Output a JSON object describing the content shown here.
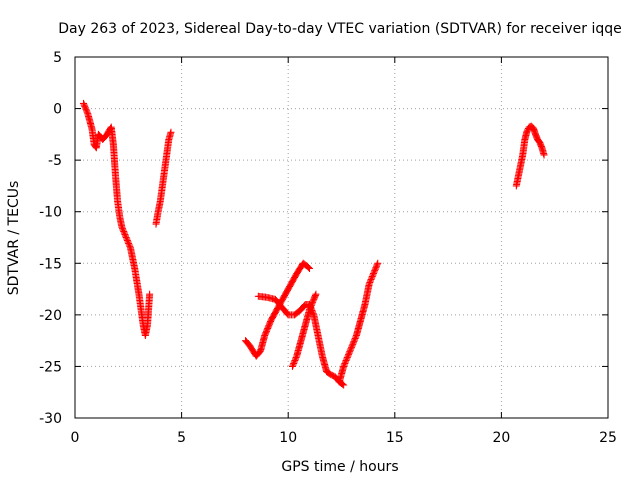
{
  "chart_data": {
    "type": "scatter",
    "title": "Day 263 of 2023, Sidereal Day-to-day VTEC variation (SDTVAR) for receiver iqqe",
    "xlabel": "GPS time / hours",
    "ylabel": "SDTVAR / TECUs",
    "xlim": [
      0,
      25
    ],
    "ylim": [
      -30,
      5
    ],
    "xticks": [
      0,
      5,
      10,
      15,
      20,
      25
    ],
    "yticks": [
      5,
      0,
      -5,
      -10,
      -15,
      -20,
      -25,
      -30
    ],
    "grid": true,
    "marker": "+",
    "color": "#ff0000",
    "series": [
      {
        "name": "arc1",
        "x": [
          0.4,
          0.6,
          0.8,
          0.9,
          1.0,
          1.1,
          1.3,
          1.5,
          1.7,
          1.8,
          1.9,
          2.0,
          2.1,
          2.2,
          2.4,
          2.6,
          2.8,
          3.0,
          3.1,
          3.2,
          3.3,
          3.4,
          3.5
        ],
        "y": [
          0.5,
          -0.5,
          -2.0,
          -3.5,
          -3.8,
          -2.5,
          -3.0,
          -2.5,
          -1.8,
          -3.5,
          -6.5,
          -9.0,
          -10.5,
          -11.5,
          -12.5,
          -13.5,
          -15.5,
          -18.0,
          -19.5,
          -21.0,
          -22.0,
          -21.0,
          -18.0
        ]
      },
      {
        "name": "arc2",
        "x": [
          3.8,
          3.9,
          4.0,
          4.1,
          4.2,
          4.3,
          4.4,
          4.5
        ],
        "y": [
          -11.2,
          -10.0,
          -9.0,
          -7.5,
          -6.0,
          -4.5,
          -3.0,
          -2.3
        ]
      },
      {
        "name": "arc3",
        "x": [
          8.0,
          8.2,
          8.5,
          8.7,
          8.9,
          9.2,
          9.6,
          10.0,
          10.4,
          10.7,
          10.9,
          11.0
        ],
        "y": [
          -22.5,
          -23.0,
          -24.0,
          -23.5,
          -22.0,
          -20.5,
          -19.0,
          -17.5,
          -16.0,
          -15.0,
          -15.3,
          -15.5
        ]
      },
      {
        "name": "arc4",
        "x": [
          8.6,
          9.0,
          9.4,
          9.8,
          10.0,
          10.3,
          10.6,
          10.8,
          11.0,
          11.2,
          11.4,
          11.6,
          11.8,
          12.0,
          12.2,
          12.4,
          12.6
        ],
        "y": [
          -18.2,
          -18.3,
          -18.5,
          -19.5,
          -20.0,
          -20.0,
          -19.5,
          -19.0,
          -19.0,
          -20.0,
          -22.0,
          -24.0,
          -25.5,
          -25.8,
          -26.0,
          -26.5,
          -26.8
        ]
      },
      {
        "name": "arc5",
        "x": [
          10.2,
          10.4,
          10.6,
          10.8,
          11.0,
          11.2,
          11.3
        ],
        "y": [
          -25.0,
          -24.0,
          -22.5,
          -21.0,
          -19.5,
          -18.5,
          -18.0
        ]
      },
      {
        "name": "arc6",
        "x": [
          12.4,
          12.6,
          12.8,
          13.0,
          13.2,
          13.4,
          13.6,
          13.8,
          14.0,
          14.2
        ],
        "y": [
          -26.5,
          -25.0,
          -24.0,
          -23.0,
          -22.0,
          -20.5,
          -19.0,
          -17.0,
          -16.0,
          -15.0
        ]
      },
      {
        "name": "arc7",
        "x": [
          20.7,
          20.8,
          20.9,
          21.0,
          21.1,
          21.2,
          21.3,
          21.4,
          21.5,
          21.6,
          21.7,
          21.8,
          21.9,
          22.0
        ],
        "y": [
          -7.5,
          -6.5,
          -5.5,
          -4.5,
          -3.0,
          -2.2,
          -1.8,
          -1.7,
          -1.9,
          -2.5,
          -3.0,
          -3.3,
          -3.8,
          -4.5
        ]
      }
    ]
  }
}
